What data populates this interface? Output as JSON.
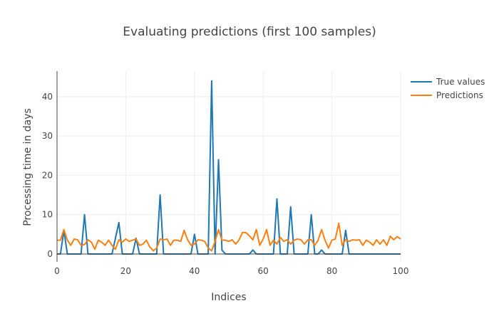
{
  "chart_data": {
    "type": "line",
    "title": "Evaluating predictions (first 100 samples)",
    "xlabel": "Indices",
    "ylabel": "Processing time in days",
    "xlim": [
      0,
      100
    ],
    "ylim": [
      -2,
      46.5
    ],
    "x_ticks": [
      0,
      20,
      40,
      60,
      80,
      100
    ],
    "y_ticks": [
      0,
      10,
      20,
      30,
      40
    ],
    "grid": true,
    "legend_position": "top-right",
    "x": [
      0,
      1,
      2,
      3,
      4,
      5,
      6,
      7,
      8,
      9,
      10,
      11,
      12,
      13,
      14,
      15,
      16,
      17,
      18,
      19,
      20,
      21,
      22,
      23,
      24,
      25,
      26,
      27,
      28,
      29,
      30,
      31,
      32,
      33,
      34,
      35,
      36,
      37,
      38,
      39,
      40,
      41,
      42,
      43,
      44,
      45,
      46,
      47,
      48,
      49,
      50,
      51,
      52,
      53,
      54,
      55,
      56,
      57,
      58,
      59,
      60,
      61,
      62,
      63,
      64,
      65,
      66,
      67,
      68,
      69,
      70,
      71,
      72,
      73,
      74,
      75,
      76,
      77,
      78,
      79,
      80,
      81,
      82,
      83,
      84,
      85,
      86,
      87,
      88,
      89,
      90,
      91,
      92,
      93,
      94,
      95,
      96,
      97,
      98,
      99,
      100
    ],
    "series": [
      {
        "name": "True values",
        "color": "#1f77b4",
        "values": [
          0,
          0,
          6,
          0,
          0,
          0,
          0,
          0,
          10,
          0,
          0,
          0,
          0,
          0,
          0,
          0,
          0,
          4,
          8,
          0,
          0,
          0,
          0,
          4,
          0,
          0,
          0,
          0,
          0,
          0,
          15,
          0,
          0,
          0,
          0,
          0,
          0,
          0,
          0,
          0,
          5,
          0,
          0,
          0,
          0,
          44,
          0,
          24,
          1,
          0,
          0,
          0,
          0,
          0,
          0,
          0,
          0,
          1,
          0,
          0,
          0,
          0,
          0,
          0,
          14,
          0,
          0,
          0,
          12,
          0,
          0,
          0,
          0,
          0,
          10,
          0,
          0,
          1,
          0,
          0,
          0,
          0,
          0,
          0,
          6,
          0,
          0,
          0,
          0,
          0,
          0,
          0,
          0,
          0,
          0,
          0,
          0,
          0,
          0,
          0,
          0
        ]
      },
      {
        "name": "Predictions",
        "color": "#ff7f0e",
        "values": [
          3.5,
          3.5,
          6.2,
          3.5,
          2.2,
          3.8,
          3.6,
          2.2,
          2.4,
          3.6,
          3.0,
          1.2,
          3.5,
          3.0,
          2.2,
          3.5,
          2.2,
          1.2,
          3.6,
          3.0,
          3.8,
          3.2,
          3.5,
          3.8,
          2.2,
          2.5,
          3.5,
          1.8,
          0.8,
          1.5,
          3.8,
          3.6,
          3.8,
          2.2,
          3.5,
          3.5,
          3.2,
          6.0,
          3.6,
          2.2,
          2.5,
          3.6,
          3.5,
          3.2,
          1.5,
          0.8,
          3.2,
          6.2,
          3.5,
          3.5,
          3.2,
          3.6,
          2.5,
          3.6,
          5.5,
          5.4,
          4.6,
          3.6,
          6.2,
          2.2,
          3.8,
          6.2,
          2.2,
          3.5,
          2.5,
          4.2,
          3.2,
          3.6,
          2.5,
          3.5,
          3.8,
          3.6,
          2.5,
          3.6,
          3.6,
          2.2,
          3.5,
          6.2,
          3.5,
          1.5,
          3.5,
          3.8,
          7.8,
          2.2,
          3.6,
          3.2,
          3.6,
          3.5,
          3.6,
          2.2,
          3.5,
          3.0,
          2.2,
          3.6,
          2.5,
          3.6,
          2.2,
          4.5,
          3.6,
          4.4,
          3.8
        ]
      }
    ]
  }
}
